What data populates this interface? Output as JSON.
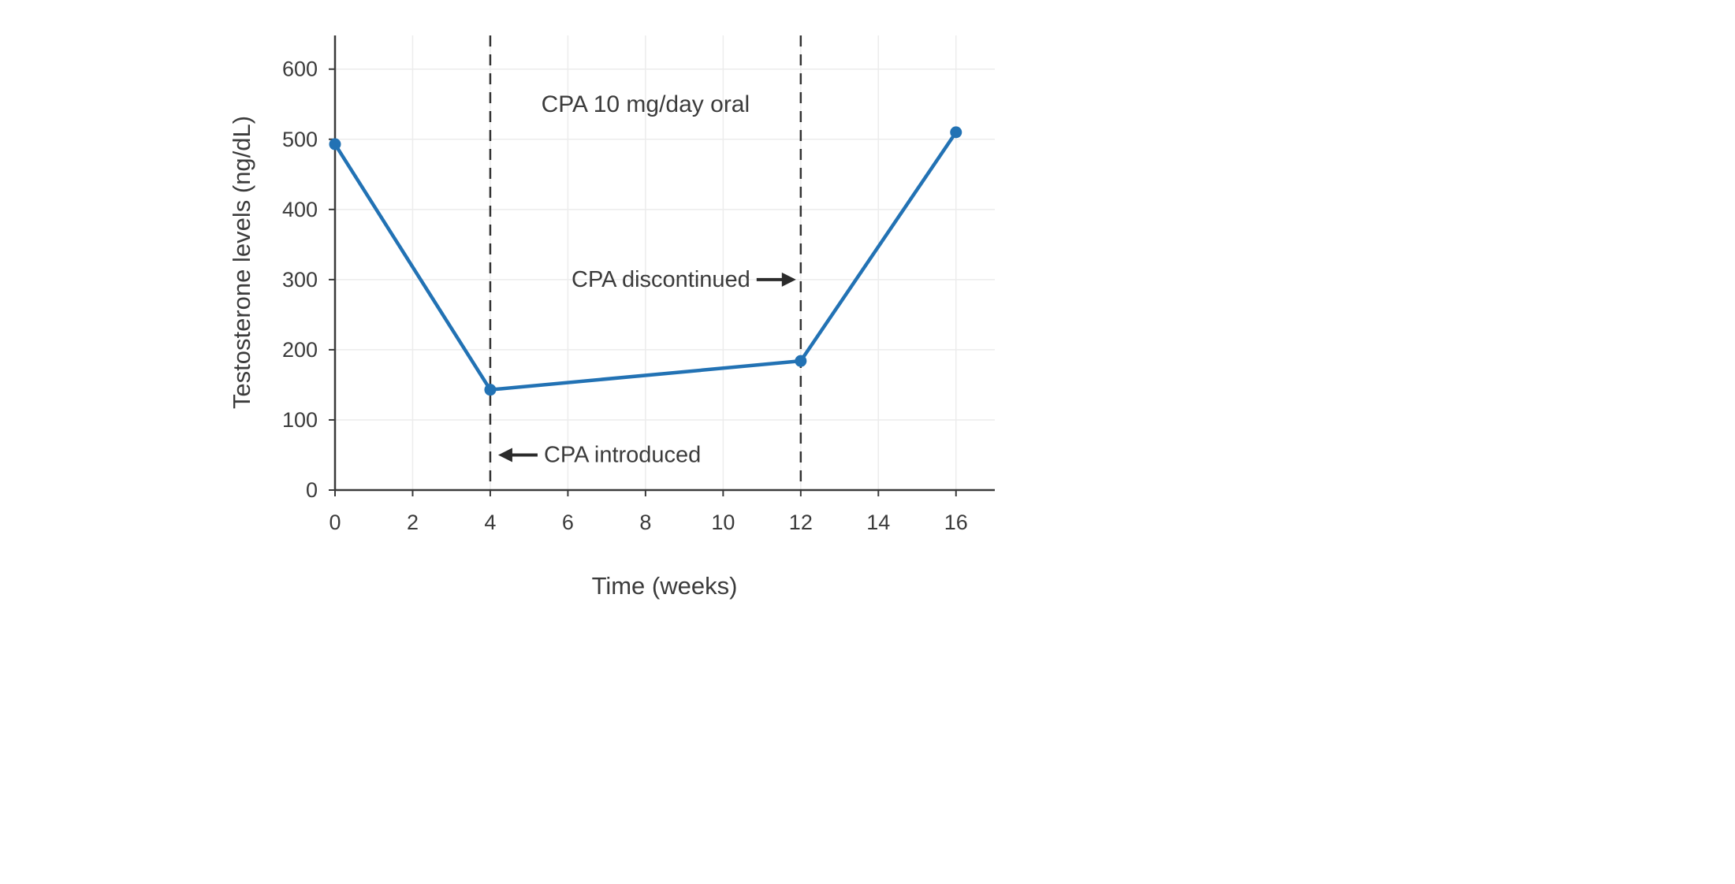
{
  "page": {
    "background": "#ffffff"
  },
  "chart_data": {
    "type": "line",
    "title": "",
    "xlabel": "Time (weeks)",
    "ylabel": "Testosterone levels (ng/dL)",
    "x": [
      0,
      4,
      12,
      16
    ],
    "y": [
      493,
      143,
      184,
      510
    ],
    "xticks": [
      0,
      2,
      4,
      6,
      8,
      10,
      12,
      14,
      16
    ],
    "yticks": [
      0,
      100,
      200,
      300,
      400,
      500,
      600
    ],
    "xlim": [
      0,
      17
    ],
    "ylim": [
      0,
      648
    ],
    "grid": true,
    "legend": "none",
    "line_color": "#2272b4",
    "marker_color": "#2272b4",
    "axis_color": "#3a3a3a",
    "grid_color": "#ececec",
    "text_color": "#3b3b3b",
    "arrow_color": "#2b2b2b",
    "vlines": [
      {
        "x": 4,
        "color": "#333333",
        "style": "dashed"
      },
      {
        "x": 12,
        "color": "#333333",
        "style": "dashed"
      }
    ],
    "annotations": [
      {
        "id": "dose-label",
        "text": "CPA 10 mg/day oral",
        "x": 8,
        "y": 550,
        "arrow": "none"
      },
      {
        "id": "cpa-discontinued",
        "text": "CPA discontinued",
        "x": 12,
        "y": 300,
        "arrow": "right"
      },
      {
        "id": "cpa-introduced",
        "text": "CPA introduced",
        "x": 4,
        "y": 50,
        "arrow": "left"
      }
    ]
  }
}
